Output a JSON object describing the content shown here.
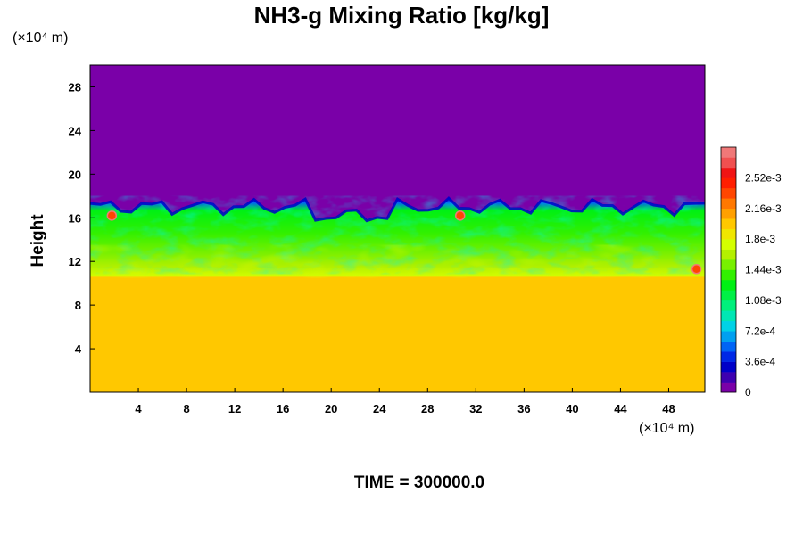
{
  "chart_data": {
    "type": "heatmap",
    "title": "NH3-g Mixing Ratio [kg/kg]",
    "ylabel": "Height",
    "x_unit_label": "(×10⁴ m)",
    "y_unit_label": "(×10⁴ m)",
    "footer": "TIME = 300000.0",
    "xlim": [
      0,
      51
    ],
    "ylim": [
      0,
      30
    ],
    "x_ticks": [
      "4",
      "8",
      "12",
      "16",
      "20",
      "24",
      "28",
      "32",
      "36",
      "40",
      "44",
      "48"
    ],
    "y_ticks": [
      "4",
      "8",
      "12",
      "16",
      "20",
      "24",
      "28"
    ],
    "colorbar": {
      "range": [
        0,
        0.0027
      ],
      "labels": [
        "0",
        "3.6e-4",
        "7.2e-4",
        "1.08e-3",
        "1.44e-3",
        "1.8e-3",
        "2.16e-3",
        "2.52e-3"
      ],
      "colors": [
        "#7a00a8",
        "#3e00b0",
        "#0000c8",
        "#0028e6",
        "#0064f5",
        "#00a0f0",
        "#00d2e6",
        "#00e6b4",
        "#00f07c",
        "#00f046",
        "#00f014",
        "#32f000",
        "#78f000",
        "#b4f000",
        "#d4ff00",
        "#f0e600",
        "#ffc800",
        "#ffa000",
        "#ff7800",
        "#ff4600",
        "#ff1e00",
        "#f01414",
        "#f05050",
        "#f07878"
      ]
    },
    "fields": {
      "upper_layer_value": 0.0,
      "lower_layer_value": 0.0018,
      "transition_band": [
        11,
        17.5
      ]
    }
  }
}
